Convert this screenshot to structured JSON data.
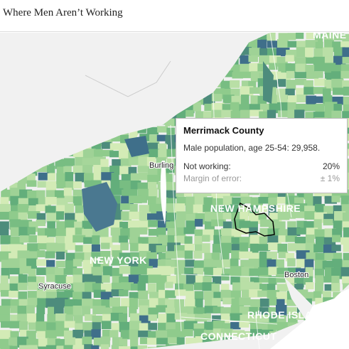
{
  "header": {
    "title": "Where Men Aren’t Working"
  },
  "map": {
    "labels": {
      "maine": "MAINE",
      "burlington": "Burling",
      "new_hampshire": "NEW HAMPSHIRE",
      "new_york": "NEW YORK",
      "syracuse": "Syracuse",
      "boston": "Boston",
      "rhode_island": "RHODE ISLAND",
      "connecticut": "CONNECTICUT"
    }
  },
  "tooltip": {
    "county": "Merrimack County",
    "population": "Male population, age 25-54: 29,958.",
    "not_working_label": "Not working:",
    "not_working_value": "20%",
    "margin_label": "Margin of error:",
    "margin_value": "± 1%"
  }
}
